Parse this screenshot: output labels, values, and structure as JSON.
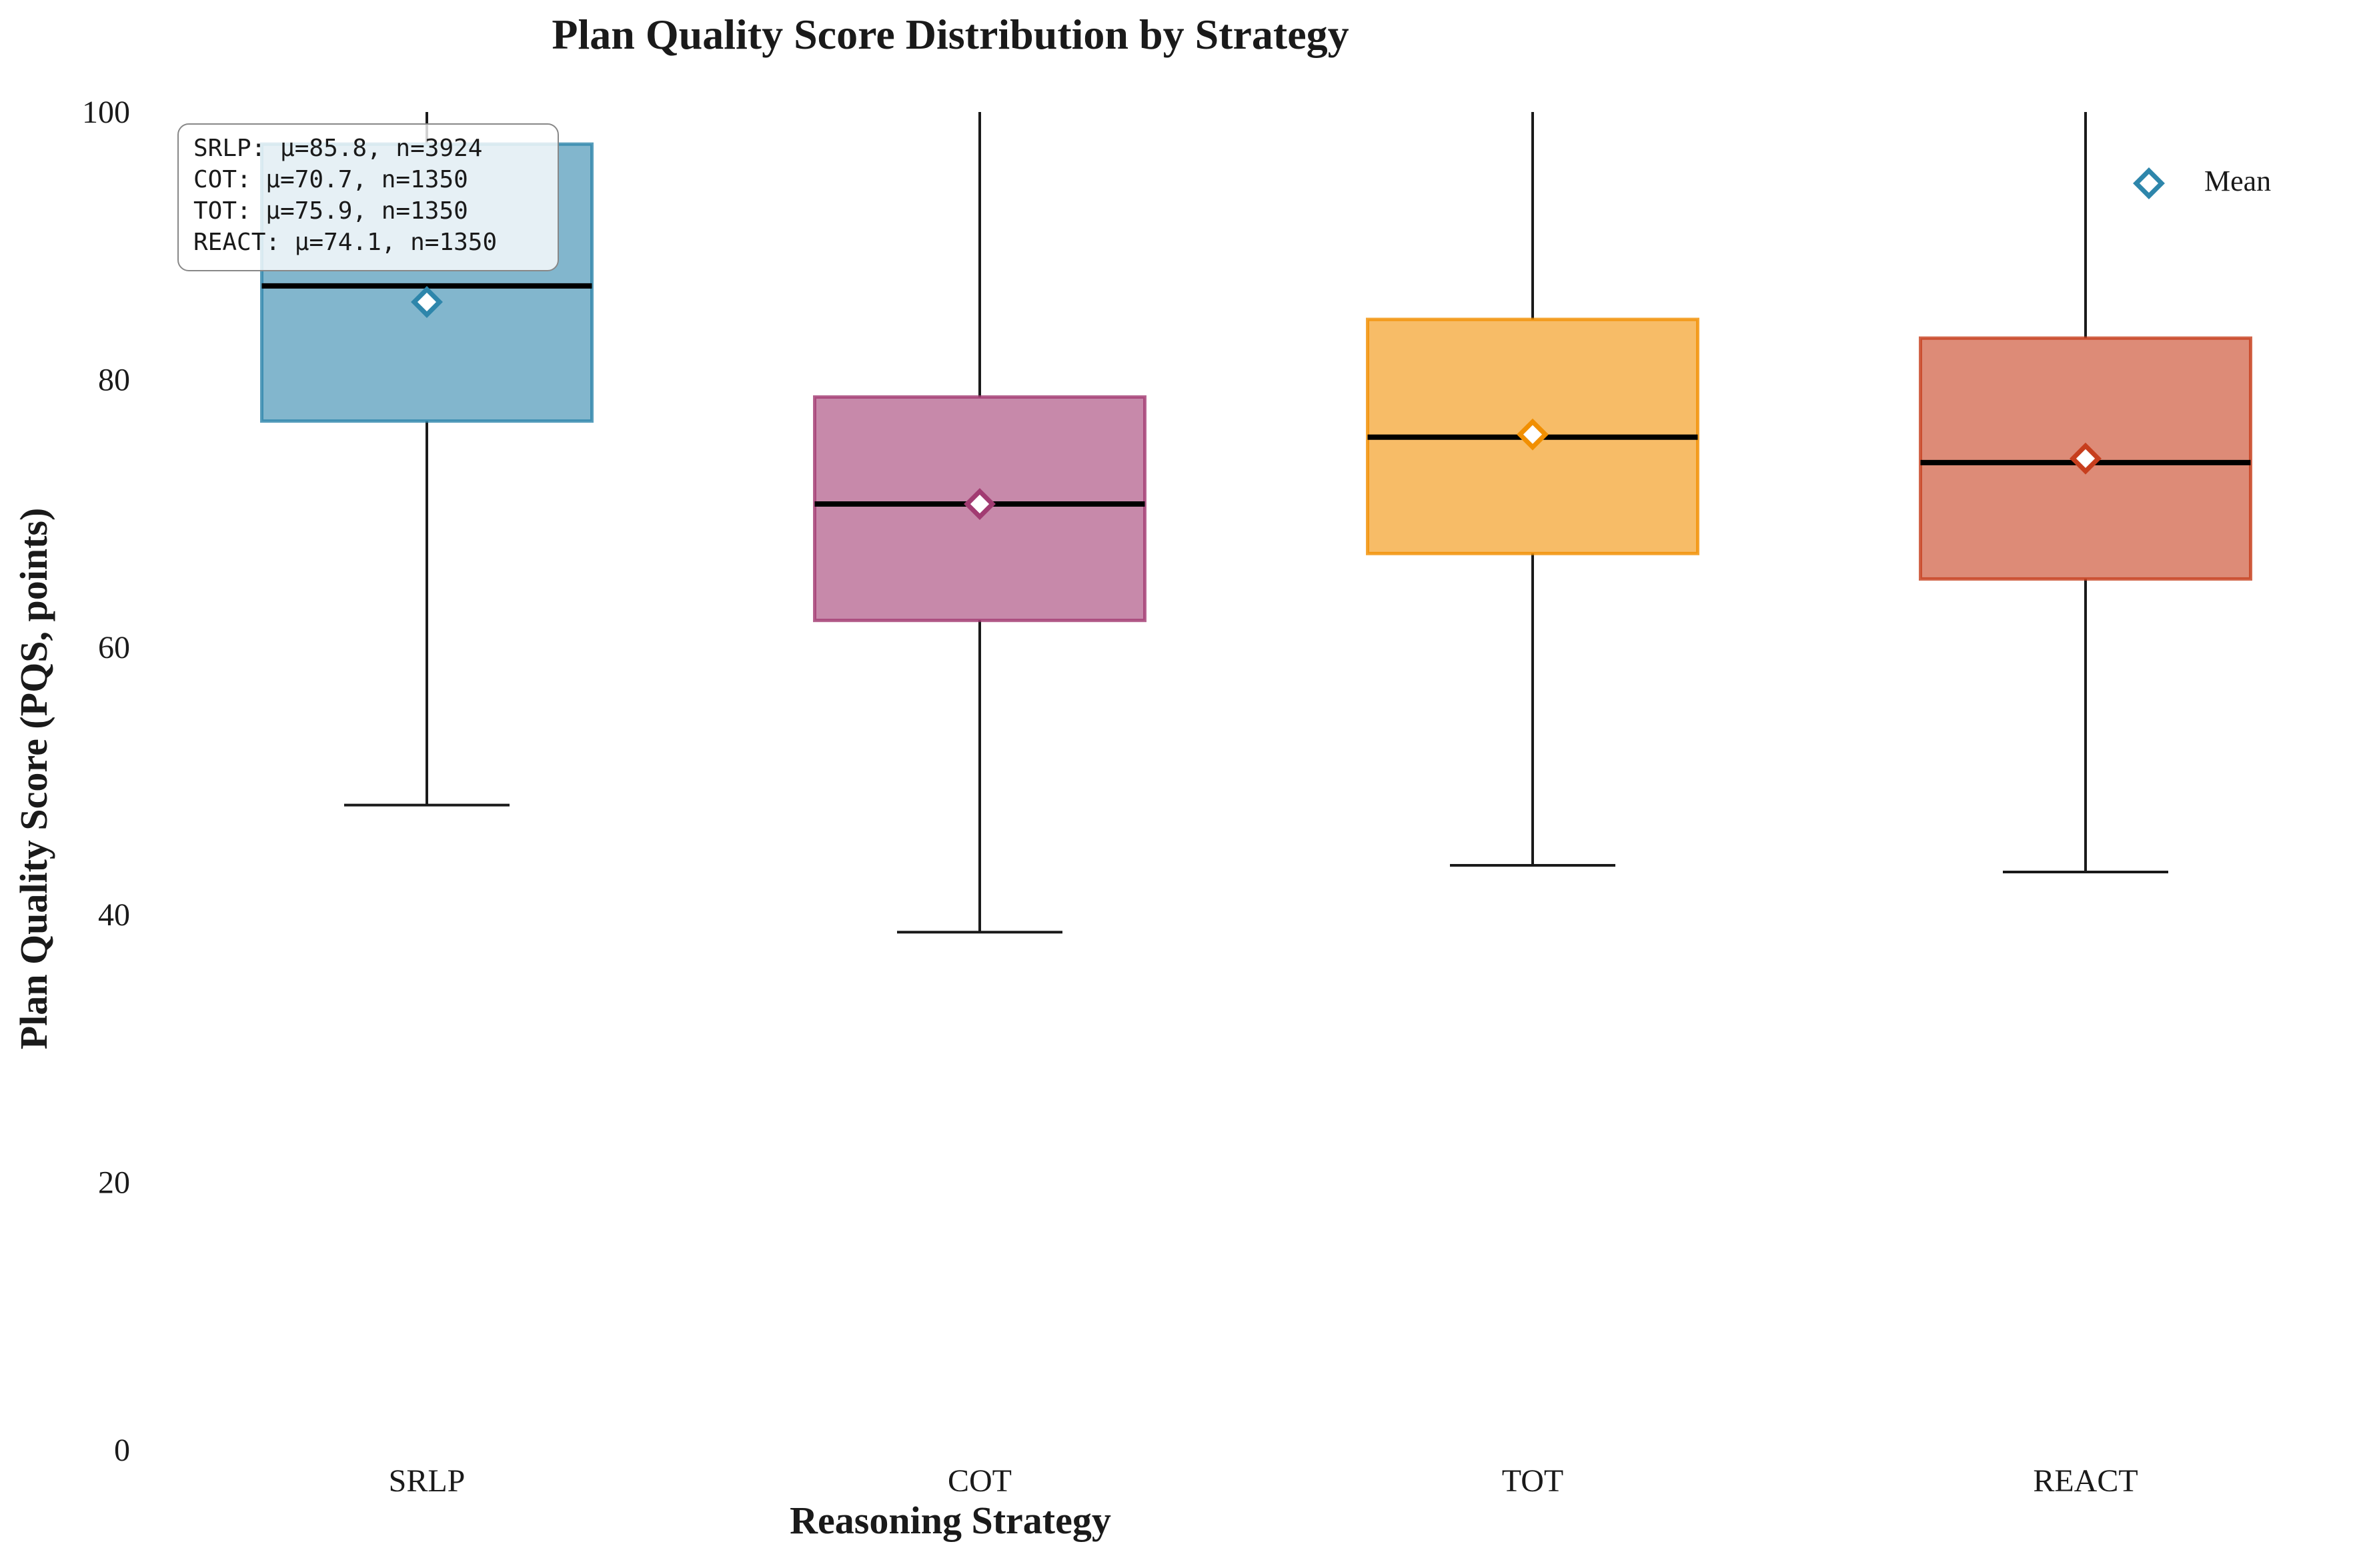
{
  "chart_data": {
    "type": "box",
    "title": "Plan Quality Score Distribution by Strategy",
    "xlabel": "Reasoning Strategy",
    "ylabel": "Plan Quality Score (PQS, points)",
    "ylim": [
      0,
      100
    ],
    "yticks": [
      0,
      20,
      40,
      60,
      80,
      100
    ],
    "categories": [
      "SRLP",
      "COT",
      "TOT",
      "REACT"
    ],
    "boxes": [
      {
        "category": "SRLP",
        "whisker_low": 48.2,
        "q1": 76.9,
        "median": 87.0,
        "q3": 97.6,
        "whisker_high": 100,
        "mean": 85.8,
        "n": 3924,
        "color": "#2e86ab"
      },
      {
        "category": "COT",
        "whisker_low": 38.7,
        "q1": 62.0,
        "median": 70.7,
        "q3": 78.7,
        "whisker_high": 100,
        "mean": 70.7,
        "n": 1350,
        "color": "#a23b72"
      },
      {
        "category": "TOT",
        "whisker_low": 43.7,
        "q1": 67.0,
        "median": 75.7,
        "q3": 84.5,
        "whisker_high": 100,
        "mean": 75.9,
        "n": 1350,
        "color": "#f18f01"
      },
      {
        "category": "REACT",
        "whisker_low": 43.2,
        "q1": 65.1,
        "median": 73.8,
        "q3": 83.1,
        "whisker_high": 100,
        "mean": 74.1,
        "n": 1350,
        "color": "#c73e1d"
      }
    ],
    "stats_box": [
      "SRLP: μ=85.8, n=3924",
      "COT: μ=70.7, n=1350",
      "TOT: μ=75.9, n=1350",
      "REACT: μ=74.1, n=1350"
    ],
    "legend": {
      "label": "Mean",
      "placement": "top-right"
    },
    "grid": false
  }
}
